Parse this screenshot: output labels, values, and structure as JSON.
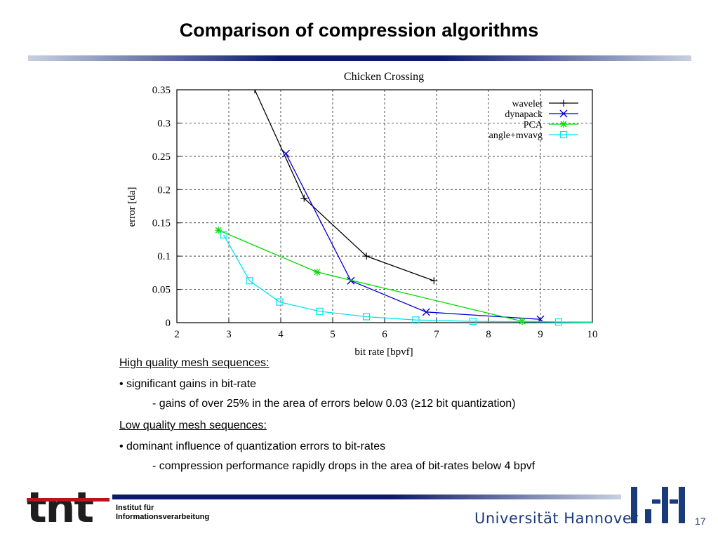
{
  "slide": {
    "title": "Comparison of compression algorithms",
    "page_number": "17"
  },
  "notes": {
    "high_heading": "High quality mesh sequences:",
    "high_bullet": "• significant gains in bit-rate",
    "high_sub": "- gains of over 25% in the area of errors below 0.03 (≥12 bit quantization)",
    "low_heading": "Low quality mesh sequences:",
    "low_bullet": "• dominant influence of quantization errors to bit-rates",
    "low_sub": "- compression performance rapidly drops in the area of bit-rates below 4 bpvf"
  },
  "footer": {
    "logo_text": "tnt",
    "institute_line1": "Institut für",
    "institute_line2": "Informationsverarbeitung",
    "university": "Universität Hannover"
  },
  "chart_data": {
    "type": "line",
    "title": "Chicken Crossing",
    "xlabel": "bit rate [bpvf]",
    "ylabel": "error [da]",
    "xlim": [
      2,
      10
    ],
    "ylim": [
      0,
      0.35
    ],
    "xticks": [
      2,
      3,
      4,
      5,
      6,
      7,
      8,
      9,
      10
    ],
    "yticks": [
      0,
      0.05,
      0.1,
      0.15,
      0.2,
      0.25,
      0.3,
      0.35
    ],
    "ytick_labels": [
      "0",
      "0.05",
      "0.1",
      "0.15",
      "0.2",
      "0.25",
      "0.3",
      "0.35"
    ],
    "grid": true,
    "legend_position": "top-right",
    "series": [
      {
        "name": "wavelet",
        "color": "#000000",
        "marker": "plus",
        "x": [
          3.5,
          4.45,
          5.65,
          6.95
        ],
        "y": [
          0.35,
          0.187,
          0.1,
          0.063
        ]
      },
      {
        "name": "dynapack",
        "color": "#0000cc",
        "marker": "cross",
        "x": [
          4.1,
          5.35,
          6.8,
          9.0
        ],
        "y": [
          0.254,
          0.063,
          0.016,
          0.005
        ]
      },
      {
        "name": "PCA",
        "color": "#00dd00",
        "marker": "star",
        "x": [
          2.8,
          4.7,
          8.65,
          10.0
        ],
        "y": [
          0.139,
          0.076,
          0.002,
          0.0
        ]
      },
      {
        "name": "angle+mvavg",
        "color": "#00e5ee",
        "marker": "square",
        "x": [
          2.9,
          3.4,
          3.98,
          4.75,
          5.65,
          6.6,
          7.7,
          9.35,
          10.0
        ],
        "y": [
          0.132,
          0.063,
          0.031,
          0.017,
          0.009,
          0.004,
          0.002,
          0.001,
          0.001
        ]
      }
    ]
  }
}
